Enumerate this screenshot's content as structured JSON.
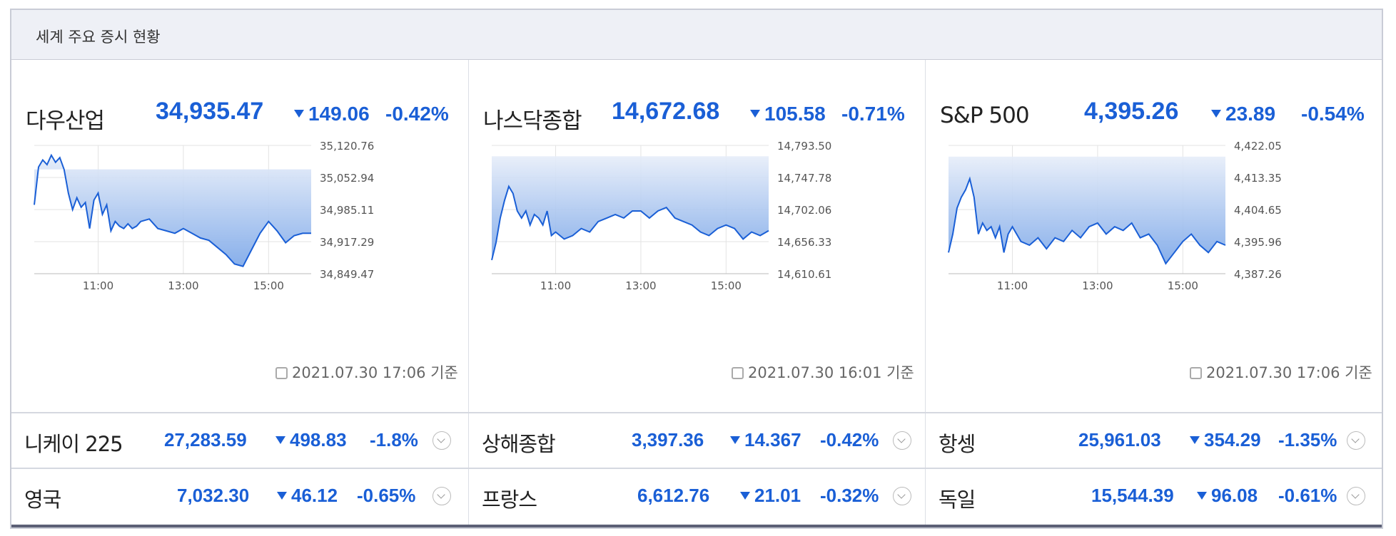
{
  "header": {
    "title": "세계 주요 증시 현황"
  },
  "colors": {
    "accent": "#1a5fd6",
    "up": "#e8323c",
    "fill_top": "#e6edf9",
    "fill_bottom": "#7aa6e8"
  },
  "panels": [
    {
      "name": "다우산업",
      "value": "34,935.47",
      "change": "149.06",
      "percent": "-0.42%",
      "timestamp": "2021.07.30 17:06 기준",
      "chart_data": {
        "type": "area",
        "ylim": [
          34849.47,
          35120.76
        ],
        "y_ticks": [
          "35,120.76",
          "35,052.94",
          "34,985.11",
          "34,917.29",
          "34,849.47"
        ],
        "x_ticks": [
          "11:00",
          "13:00",
          "15:00"
        ],
        "baseline": 35070,
        "series": [
          {
            "x": [
              9.5,
              9.6,
              9.7,
              9.8,
              9.9,
              10.0,
              10.1,
              10.2,
              10.3,
              10.4,
              10.5,
              10.6,
              10.7,
              10.8,
              10.9,
              11.0,
              11.1,
              11.2,
              11.3,
              11.4,
              11.5,
              11.6,
              11.7,
              11.8,
              11.9,
              12.0,
              12.2,
              12.4,
              12.6,
              12.8,
              13.0,
              13.2,
              13.4,
              13.6,
              13.8,
              14.0,
              14.2,
              14.4,
              14.6,
              14.8,
              15.0,
              15.2,
              15.4,
              15.6,
              15.8,
              16.0
            ],
            "y": [
              34995,
              35075,
              35090,
              35080,
              35100,
              35085,
              35095,
              35070,
              35020,
              34985,
              35010,
              34990,
              35000,
              34945,
              35005,
              35020,
              34975,
              34995,
              34940,
              34960,
              34950,
              34945,
              34955,
              34945,
              34950,
              34960,
              34965,
              34945,
              34940,
              34935,
              34945,
              34935,
              34925,
              34920,
              34905,
              34890,
              34870,
              34865,
              34900,
              34935,
              34960,
              34940,
              34915,
              34930,
              34935,
              34935
            ]
          }
        ]
      }
    },
    {
      "name": "나스닥종합",
      "value": "14,672.68",
      "change": "105.58",
      "percent": "-0.71%",
      "timestamp": "2021.07.30 16:01 기준",
      "chart_data": {
        "type": "area",
        "ylim": [
          14610.61,
          14793.5
        ],
        "y_ticks": [
          "14,793.50",
          "14,747.78",
          "14,702.06",
          "14,656.33",
          "14,610.61"
        ],
        "x_ticks": [
          "11:00",
          "13:00",
          "15:00"
        ],
        "baseline": 14778,
        "series": [
          {
            "x": [
              9.5,
              9.6,
              9.7,
              9.8,
              9.9,
              10.0,
              10.1,
              10.2,
              10.3,
              10.4,
              10.5,
              10.6,
              10.7,
              10.8,
              10.9,
              11.0,
              11.2,
              11.4,
              11.6,
              11.8,
              12.0,
              12.2,
              12.4,
              12.6,
              12.8,
              13.0,
              13.2,
              13.4,
              13.6,
              13.8,
              14.0,
              14.2,
              14.4,
              14.6,
              14.8,
              15.0,
              15.2,
              15.4,
              15.6,
              15.8,
              16.0
            ],
            "y": [
              14630,
              14655,
              14690,
              14715,
              14735,
              14725,
              14700,
              14690,
              14700,
              14680,
              14695,
              14690,
              14680,
              14700,
              14665,
              14670,
              14660,
              14665,
              14675,
              14670,
              14685,
              14690,
              14695,
              14690,
              14700,
              14700,
              14690,
              14700,
              14705,
              14690,
              14685,
              14680,
              14670,
              14665,
              14675,
              14680,
              14675,
              14660,
              14670,
              14665,
              14672
            ]
          }
        ]
      }
    },
    {
      "name": "S&P 500",
      "value": "4,395.26",
      "change": "23.89",
      "percent": "-0.54%",
      "timestamp": "2021.07.30 17:06 기준",
      "chart_data": {
        "type": "area",
        "ylim": [
          4387.26,
          4422.05
        ],
        "y_ticks": [
          "4,422.05",
          "4,413.35",
          "4,404.65",
          "4,395.96",
          "4,387.26"
        ],
        "x_ticks": [
          "11:00",
          "13:00",
          "15:00"
        ],
        "baseline": 4419,
        "series": [
          {
            "x": [
              9.5,
              9.6,
              9.7,
              9.8,
              9.9,
              10.0,
              10.1,
              10.2,
              10.3,
              10.4,
              10.5,
              10.6,
              10.7,
              10.8,
              10.9,
              11.0,
              11.2,
              11.4,
              11.6,
              11.8,
              12.0,
              12.2,
              12.4,
              12.6,
              12.8,
              13.0,
              13.2,
              13.4,
              13.6,
              13.8,
              14.0,
              14.2,
              14.4,
              14.6,
              14.8,
              15.0,
              15.2,
              15.4,
              15.6,
              15.8,
              16.0
            ],
            "y": [
              4393,
              4398,
              4405,
              4408,
              4410,
              4413,
              4408,
              4398,
              4401,
              4399,
              4400,
              4397,
              4400,
              4393,
              4398,
              4400,
              4396,
              4395,
              4397,
              4394,
              4397,
              4396,
              4399,
              4397,
              4400,
              4401,
              4398,
              4400,
              4399,
              4401,
              4397,
              4398,
              4395,
              4390,
              4393,
              4396,
              4398,
              4395,
              4393,
              4396,
              4395
            ]
          }
        ]
      }
    }
  ],
  "row1": [
    {
      "name": "니케이 225",
      "value": "27,283.59",
      "change": "498.83",
      "percent": "-1.8%"
    },
    {
      "name": "상해종합",
      "value": "3,397.36",
      "change": "14.367",
      "percent": "-0.42%"
    },
    {
      "name": "항셍",
      "value": "25,961.03",
      "change": "354.29",
      "percent": "-1.35%"
    }
  ],
  "row2": [
    {
      "name": "영국",
      "value": "7,032.30",
      "change": "46.12",
      "percent": "-0.65%"
    },
    {
      "name": "프랑스",
      "value": "6,612.76",
      "change": "21.01",
      "percent": "-0.32%"
    },
    {
      "name": "독일",
      "value": "15,544.39",
      "change": "96.08",
      "percent": "-0.61%"
    }
  ]
}
